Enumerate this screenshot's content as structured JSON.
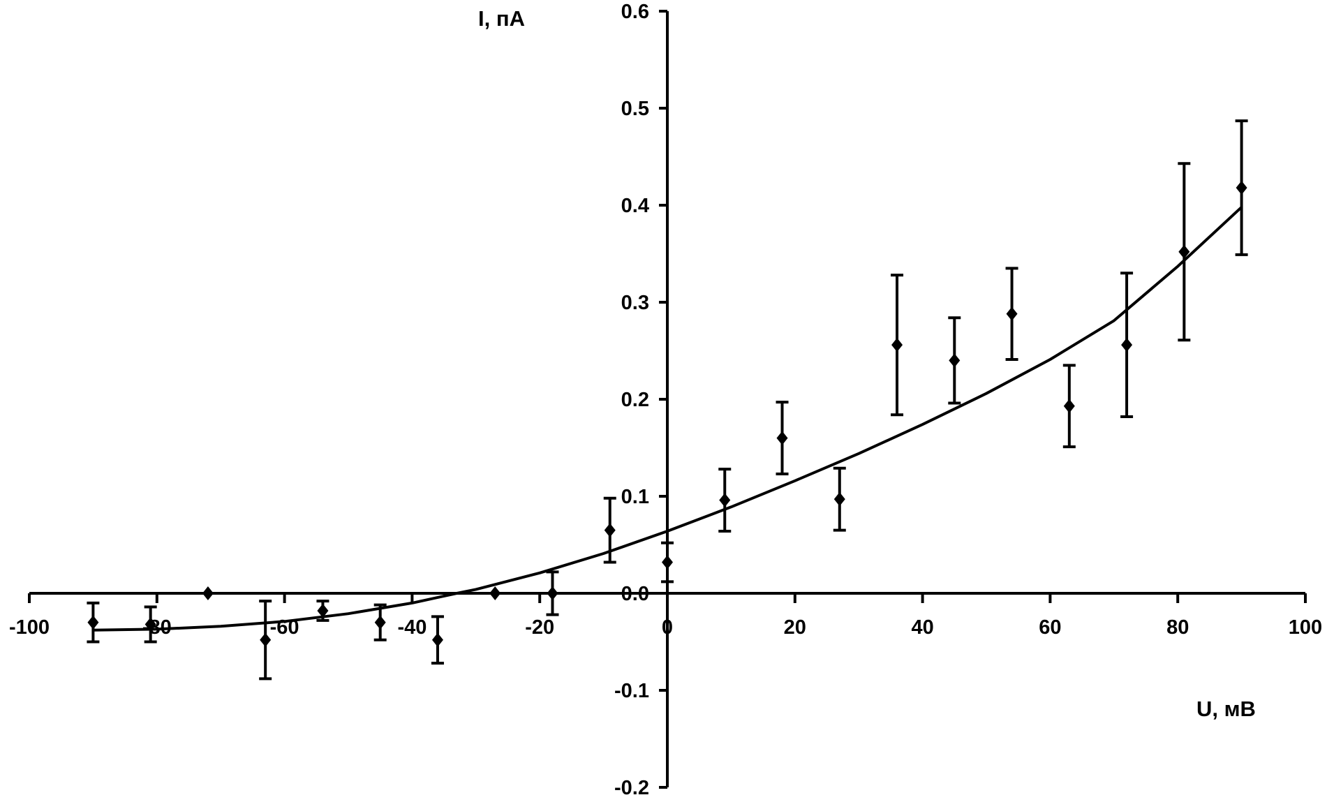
{
  "chart_data": {
    "type": "scatter",
    "title": "",
    "xlabel": "U, мВ",
    "ylabel": "I, пА",
    "xlim": [
      -100,
      100
    ],
    "ylim": [
      -0.2,
      0.6
    ],
    "x_ticks": [
      -100,
      -80,
      -60,
      -40,
      -20,
      0,
      20,
      40,
      60,
      80,
      100
    ],
    "y_ticks": [
      -0.2,
      -0.1,
      0.0,
      0.1,
      0.2,
      0.3,
      0.4,
      0.5,
      0.6
    ],
    "x_tick_labels": [
      "-100",
      "-80",
      "-60",
      "-40",
      "-20",
      "0",
      "20",
      "40",
      "60",
      "80",
      "100"
    ],
    "y_tick_labels": [
      "-0.2",
      "-0.1",
      "0.0",
      "0.1",
      "0.2",
      "0.3",
      "0.4",
      "0.5",
      "0.6"
    ],
    "grid": false,
    "legend": "none",
    "axes": "crossing at origin",
    "marker": "diamond",
    "color": "#000000",
    "points": [
      {
        "x": -90,
        "y": -0.03,
        "err": 0.02
      },
      {
        "x": -81,
        "y": -0.032,
        "err": 0.018
      },
      {
        "x": -72,
        "y": 0.0,
        "err": 0.0
      },
      {
        "x": -63,
        "y": -0.048,
        "err": 0.04
      },
      {
        "x": -54,
        "y": -0.018,
        "err": 0.01
      },
      {
        "x": -45,
        "y": -0.03,
        "err": 0.018
      },
      {
        "x": -36,
        "y": -0.048,
        "err": 0.024
      },
      {
        "x": -27,
        "y": 0.0,
        "err": 0.0
      },
      {
        "x": -18,
        "y": 0.0,
        "err": 0.022
      },
      {
        "x": -9,
        "y": 0.065,
        "err": 0.033
      },
      {
        "x": 0,
        "y": 0.032,
        "err": 0.02
      },
      {
        "x": 9,
        "y": 0.096,
        "err": 0.032
      },
      {
        "x": 18,
        "y": 0.16,
        "err": 0.037
      },
      {
        "x": 27,
        "y": 0.097,
        "err": 0.032
      },
      {
        "x": 36,
        "y": 0.256,
        "err": 0.072
      },
      {
        "x": 45,
        "y": 0.24,
        "err": 0.044
      },
      {
        "x": 54,
        "y": 0.288,
        "err": 0.047
      },
      {
        "x": 63,
        "y": 0.193,
        "err": 0.042
      },
      {
        "x": 72,
        "y": 0.256,
        "err": 0.074
      },
      {
        "x": 81,
        "y": 0.352,
        "err": 0.091
      },
      {
        "x": 90,
        "y": 0.418,
        "err": 0.069
      }
    ],
    "fit_curve": {
      "x": [
        -90,
        -80,
        -70,
        -60,
        -50,
        -40,
        -33,
        -30,
        -20,
        -10,
        0,
        10,
        20,
        30,
        40,
        50,
        60,
        70,
        80,
        90
      ],
      "y": [
        -0.038,
        -0.037,
        -0.034,
        -0.029,
        -0.021,
        -0.01,
        0.0,
        0.004,
        0.021,
        0.041,
        0.064,
        0.089,
        0.116,
        0.144,
        0.174,
        0.206,
        0.241,
        0.281,
        0.337,
        0.398
      ]
    }
  }
}
